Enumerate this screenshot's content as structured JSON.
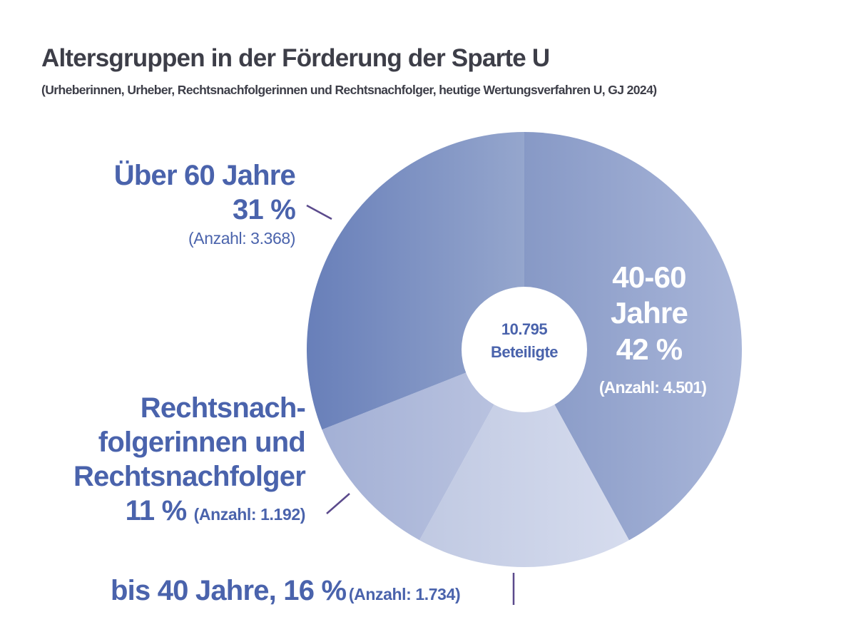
{
  "chart_data": {
    "type": "pie",
    "donut": true,
    "title": "Altersgruppen in der Förderung der Sparte U",
    "subtitle": "(Urheberinnen, Urheber, Rechtsnachfolgerinnen und Rechtsnachfolger, heutige Wertungsverfahren U, GJ 2024)",
    "center_label": {
      "value": "10.795",
      "text": "Beteiligte"
    },
    "slices": [
      {
        "label_lines": [
          "40-60",
          "Jahre"
        ],
        "percent": 42,
        "percent_text": "42 %",
        "count_text": "(Anzahl: 4.501)",
        "color_from": "#8799c6",
        "color_to": "#a9b6d9"
      },
      {
        "label_lines": [
          "bis 40 Jahre, 16 %"
        ],
        "percent": 16,
        "percent_text": "16 %",
        "count_text": "(Anzahl: 1.734)",
        "color_from": "#c0c9e2",
        "color_to": "#d6dcee"
      },
      {
        "label_lines": [
          "Rechtsnach-",
          "folgerinnen und",
          "Rechtsnachfolger"
        ],
        "percent": 11,
        "percent_text": "11 %",
        "count_text": "(Anzahl: 1.192)",
        "color_from": "#a3b0d5",
        "color_to": "#bcc5e1"
      },
      {
        "label_lines": [
          "Über 60 Jahre"
        ],
        "percent": 31,
        "percent_text": "31 %",
        "count_text": "(Anzahl: 3.368)",
        "color_from": "#687fb9",
        "color_to": "#95a6cd"
      }
    ],
    "colors": {
      "label_text": "#4a63ac",
      "leader_line": "#5b4a8c",
      "title": "#3d3e48"
    }
  }
}
